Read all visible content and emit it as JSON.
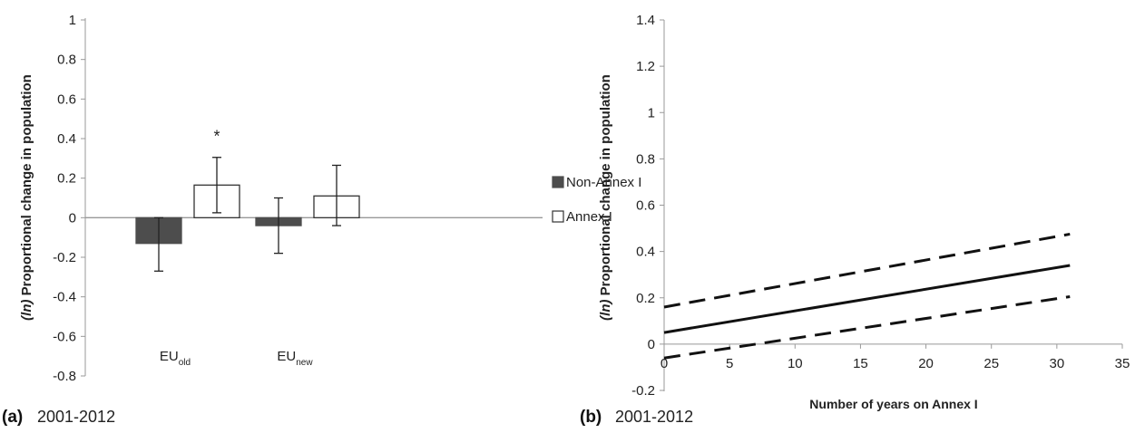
{
  "chart_data": [
    {
      "type": "bar",
      "panel_letter": "(a)",
      "caption": "2001-2012",
      "ylabel_italic": "(ln)",
      "ylabel": "Proportional change in population",
      "ylim": [
        -0.8,
        1
      ],
      "yticks": [
        -0.8,
        -0.6,
        -0.4,
        -0.2,
        0,
        0.2,
        0.4,
        0.6,
        0.8,
        1
      ],
      "categories": [
        {
          "base": "EU",
          "sub": "old"
        },
        {
          "base": "EU",
          "sub": "new"
        }
      ],
      "series": [
        {
          "name": "Non-Annex I",
          "color": "#4d4d4d",
          "values": [
            -0.13,
            -0.04
          ],
          "err_low": [
            -0.27,
            -0.18
          ],
          "err_high": [
            0.0,
            0.1
          ]
        },
        {
          "name": "Annex I",
          "color": "#ffffff",
          "values": [
            0.165,
            0.11
          ],
          "err_low": [
            0.025,
            -0.04
          ],
          "err_high": [
            0.305,
            0.265
          ]
        }
      ],
      "annotations": [
        {
          "text": "*",
          "series": 1,
          "category": 0
        }
      ],
      "legend": "right"
    },
    {
      "type": "line",
      "panel_letter": "(b)",
      "caption": "2001-2012",
      "ylabel_italic": "(ln)",
      "ylabel": "Proportional change in population",
      "xlabel": "Number of years on Annex I",
      "xlim": [
        0,
        35
      ],
      "ylim": [
        -0.2,
        1.4
      ],
      "xticks": [
        0,
        5,
        10,
        15,
        20,
        25,
        30,
        35
      ],
      "yticks": [
        -0.2,
        0,
        0.2,
        0.4,
        0.6,
        0.8,
        1,
        1.2,
        1.4
      ],
      "series": [
        {
          "style": "solid",
          "x": [
            0,
            31
          ],
          "y": [
            0.05,
            0.34
          ]
        },
        {
          "style": "dashed",
          "x": [
            0,
            31
          ],
          "y": [
            0.16,
            0.475
          ]
        },
        {
          "style": "dashed",
          "x": [
            0,
            31
          ],
          "y": [
            -0.06,
            0.205
          ]
        }
      ]
    }
  ]
}
